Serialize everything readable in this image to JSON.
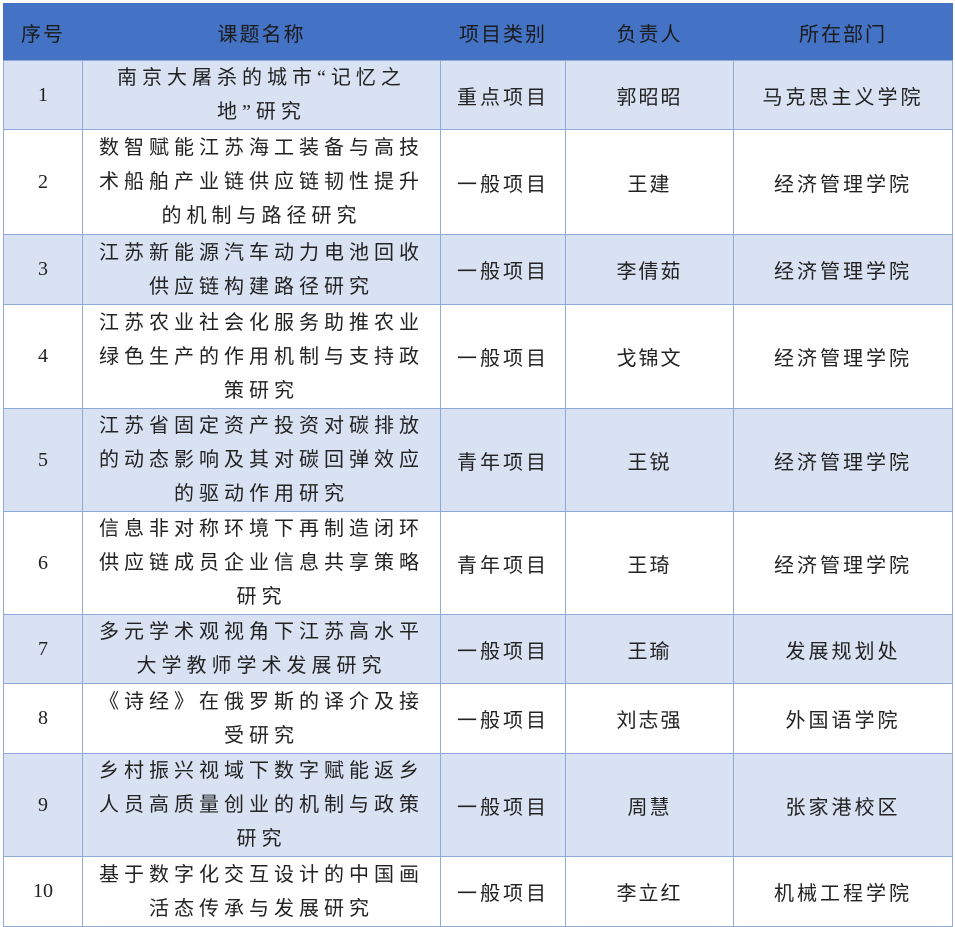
{
  "colors": {
    "header_bg": "#4472C4",
    "odd_row_bg": "#D9E2F3",
    "border": "#8EAADB"
  },
  "headers": [
    "序号",
    "课题名称",
    "项目类别",
    "负责人",
    "所在部门"
  ],
  "rows": [
    {
      "no": "1",
      "title": "南京大屠杀的城市“记忆之地”研究",
      "category": "重点项目",
      "leader": "郭昭昭",
      "dept": "马克思主义学院"
    },
    {
      "no": "2",
      "title": "数智赋能江苏海工装备与高技术船舶产业链供应链韧性提升的机制与路径研究",
      "category": "一般项目",
      "leader": "王建",
      "dept": "经济管理学院"
    },
    {
      "no": "3",
      "title": "江苏新能源汽车动力电池回收供应链构建路径研究",
      "category": "一般项目",
      "leader": "李倩茹",
      "dept": "经济管理学院"
    },
    {
      "no": "4",
      "title": "江苏农业社会化服务助推农业绿色生产的作用机制与支持政策研究",
      "category": "一般项目",
      "leader": "戈锦文",
      "dept": "经济管理学院"
    },
    {
      "no": "5",
      "title": "江苏省固定资产投资对碳排放的动态影响及其对碳回弹效应的驱动作用研究",
      "category": "青年项目",
      "leader": "王锐",
      "dept": "经济管理学院"
    },
    {
      "no": "6",
      "title": "信息非对称环境下再制造闭环供应链成员企业信息共享策略研究",
      "category": "青年项目",
      "leader": "王琦",
      "dept": "经济管理学院"
    },
    {
      "no": "7",
      "title": "多元学术观视角下江苏高水平大学教师学术发展研究",
      "category": "一般项目",
      "leader": "王瑜",
      "dept": "发展规划处"
    },
    {
      "no": "8",
      "title": "《诗经》在俄罗斯的译介及接受研究",
      "category": "一般项目",
      "leader": "刘志强",
      "dept": "外国语学院"
    },
    {
      "no": "9",
      "title": "乡村振兴视域下数字赋能返乡人员高质量创业的机制与政策研究",
      "category": "一般项目",
      "leader": "周慧",
      "dept": "张家港校区"
    },
    {
      "no": "10",
      "title": "基于数字化交互设计的中国画活态传承与发展研究",
      "category": "一般项目",
      "leader": "李立红",
      "dept": "机械工程学院"
    }
  ]
}
